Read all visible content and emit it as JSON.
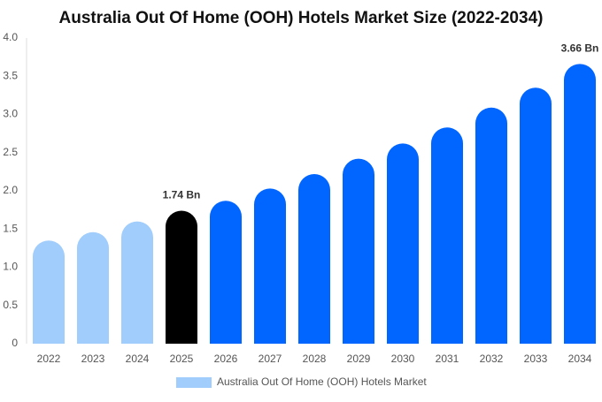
{
  "chart_data": {
    "type": "bar",
    "title": "Australia Out Of Home (OOH) Hotels Market Size (2022-2034)",
    "categories": [
      "2022",
      "2023",
      "2024",
      "2025",
      "2026",
      "2027",
      "2028",
      "2029",
      "2030",
      "2031",
      "2032",
      "2033",
      "2034"
    ],
    "series": [
      {
        "name": "Australia Out Of Home (OOH) Hotels Market",
        "color": "#a0cdfc",
        "colors": [
          "#a0cdfc",
          "#a0cdfc",
          "#a0cdfc",
          "#000000",
          "#0066ff",
          "#0066ff",
          "#0066ff",
          "#0066ff",
          "#0066ff",
          "#0066ff",
          "#0066ff",
          "#0066ff",
          "#0066ff"
        ],
        "values": [
          1.35,
          1.46,
          1.6,
          1.74,
          1.87,
          2.03,
          2.22,
          2.42,
          2.62,
          2.83,
          3.09,
          3.35,
          3.66
        ],
        "value_labels": [
          null,
          null,
          null,
          "1.74 Bn",
          null,
          null,
          null,
          null,
          null,
          null,
          null,
          null,
          "3.66 Bn"
        ]
      }
    ],
    "ylim": [
      0,
      4
    ],
    "yticks": [
      0,
      {
        "value": 0.5,
        "label": "0.5"
      },
      {
        "value": 1,
        "label": "1.0"
      },
      {
        "value": 1.5,
        "label": "1.5"
      },
      {
        "value": 2,
        "label": "2.0"
      },
      {
        "value": 2.5,
        "label": "2.5"
      },
      {
        "value": 3,
        "label": "3.0"
      },
      {
        "value": 3.5,
        "label": "3.5"
      },
      {
        "value": 4,
        "label": "4.0"
      }
    ],
    "grid": false
  }
}
